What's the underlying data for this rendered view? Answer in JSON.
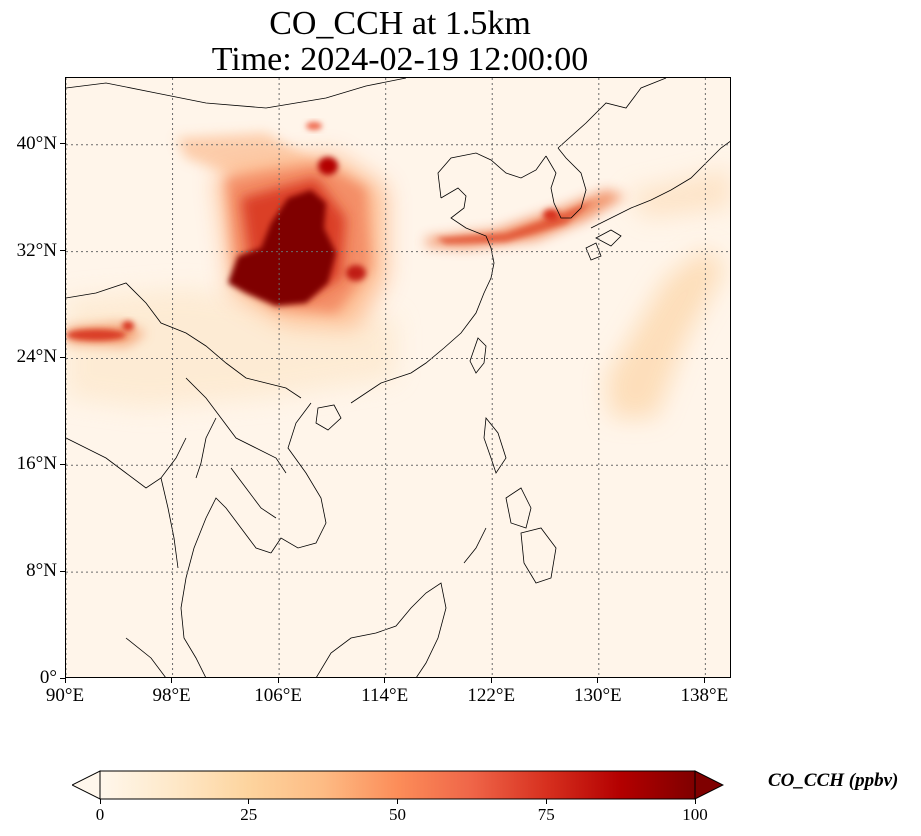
{
  "title": {
    "line1": "CO_CCH at 1.5km",
    "line2": "Time: 2024-02-19 12:00:00"
  },
  "map": {
    "lon_range": [
      90,
      140
    ],
    "lat_range": [
      0,
      45
    ],
    "lon_ticks": [
      {
        "value": 90,
        "label": "90°E"
      },
      {
        "value": 98,
        "label": "98°E"
      },
      {
        "value": 106,
        "label": "106°E"
      },
      {
        "value": 114,
        "label": "114°E"
      },
      {
        "value": 122,
        "label": "122°E"
      },
      {
        "value": 130,
        "label": "130°E"
      },
      {
        "value": 138,
        "label": "138°E"
      }
    ],
    "lat_ticks": [
      {
        "value": 0,
        "label": "0°"
      },
      {
        "value": 8,
        "label": "8°N"
      },
      {
        "value": 16,
        "label": "16°N"
      },
      {
        "value": 24,
        "label": "24°N"
      },
      {
        "value": 32,
        "label": "32°N"
      },
      {
        "value": 40,
        "label": "40°N"
      }
    ],
    "gridlines": "dotted",
    "background_color": "#fff5ea",
    "coastline_color": "#000000"
  },
  "colorbar": {
    "label": "CO_CCH (ppbv)",
    "ticks": [
      "0",
      "25",
      "50",
      "75",
      "100"
    ],
    "min": 0,
    "max": 100,
    "colormap": "OrRd",
    "colors": [
      "#fff7ec",
      "#fee8c8",
      "#fdd49e",
      "#fdbb84",
      "#fc8d59",
      "#ef6548",
      "#d7301f",
      "#b30000",
      "#7f0000"
    ],
    "extend": "both"
  }
}
